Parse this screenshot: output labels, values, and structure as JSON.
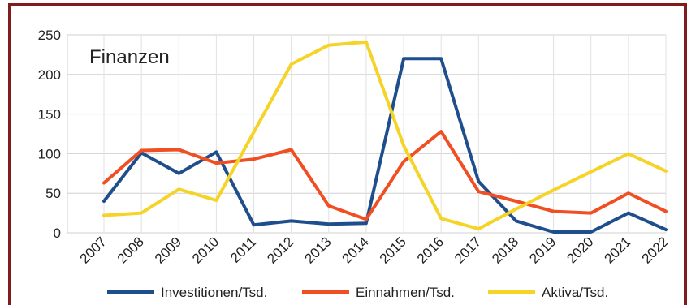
{
  "chart_data": {
    "type": "line",
    "title": "Finanzen",
    "categories": [
      "2007",
      "2008",
      "2009",
      "2010",
      "2011",
      "2012",
      "2013",
      "2014",
      "2015",
      "2016",
      "2017",
      "2018",
      "2019",
      "2020",
      "2021",
      "2022"
    ],
    "ylim": [
      0,
      250
    ],
    "yticks": [
      0,
      50,
      100,
      150,
      200,
      250
    ],
    "grid": true,
    "legend": "bottom",
    "series": [
      {
        "name": "Investitionen/Tsd.",
        "color": "#1f4e8c",
        "values": [
          40,
          101,
          75,
          102,
          10,
          15,
          11,
          12,
          220,
          220,
          65,
          15,
          1,
          1,
          25,
          4
        ]
      },
      {
        "name": "Einnahmen/Tsd.",
        "color": "#f04e23",
        "values": [
          63,
          104,
          105,
          88,
          93,
          105,
          34,
          17,
          90,
          128,
          52,
          40,
          27,
          25,
          50,
          27
        ]
      },
      {
        "name": "Aktiva/Tsd.",
        "color": "#f5d327",
        "values": [
          22,
          25,
          55,
          41,
          127,
          213,
          237,
          241,
          110,
          18,
          5,
          30,
          54,
          77,
          100,
          78
        ]
      }
    ]
  }
}
